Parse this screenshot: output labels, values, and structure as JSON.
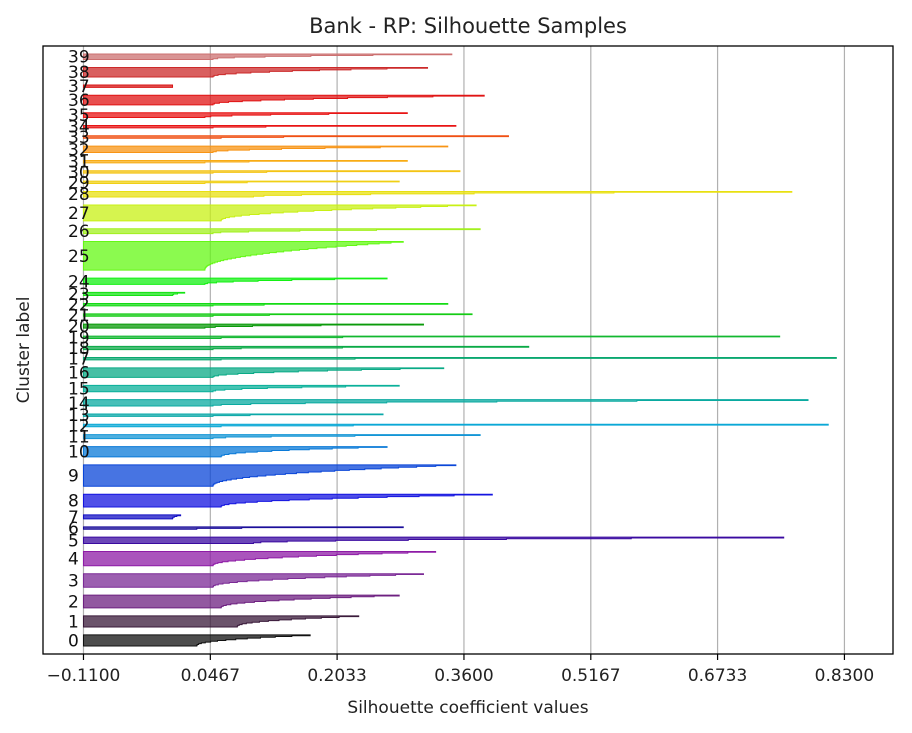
{
  "chart_data": {
    "type": "silhouette",
    "title": "Bank - RP: Silhouette Samples",
    "xlabel": "Silhouette coefficient values",
    "ylabel": "Cluster label",
    "xlim": [
      -0.16,
      0.89
    ],
    "x_ticks": [
      -0.11,
      0.0467,
      0.2033,
      0.36,
      0.5167,
      0.6733,
      0.83
    ],
    "x_tick_labels": [
      "−0.1100",
      "0.0467",
      "0.2033",
      "0.3600",
      "0.5167",
      "0.6733",
      "0.8300"
    ],
    "grid": "vertical",
    "colormap": "nipy_spectral",
    "clusters": [
      {
        "label": "0",
        "size": 14,
        "max": 0.17,
        "tail": 0.03,
        "color": "#111111"
      },
      {
        "label": "1",
        "size": 14,
        "max": 0.23,
        "tail": 0.08,
        "color": "#3a1a3a"
      },
      {
        "label": "2",
        "size": 16,
        "max": 0.28,
        "tail": 0.06,
        "color": "#6e2080"
      },
      {
        "label": "3",
        "size": 17,
        "max": 0.31,
        "tail": 0.05,
        "color": "#7b2a96"
      },
      {
        "label": "4",
        "size": 18,
        "max": 0.325,
        "tail": 0.05,
        "color": "#8e1ba6"
      },
      {
        "label": "5",
        "size": 8,
        "max": 0.755,
        "tail": 0.1,
        "color": "#3a0aa0"
      },
      {
        "label": "6",
        "size": 3,
        "max": 0.285,
        "tail": 0.03,
        "color": "#1a0d9a"
      },
      {
        "label": "7",
        "size": 5,
        "max": 0.01,
        "tail": 0.0,
        "color": "#1410c4"
      },
      {
        "label": "8",
        "size": 16,
        "max": 0.395,
        "tail": 0.06,
        "color": "#1414e0"
      },
      {
        "label": "9",
        "size": 27,
        "max": 0.35,
        "tail": 0.05,
        "color": "#0a46d8"
      },
      {
        "label": "10",
        "size": 13,
        "max": 0.265,
        "tail": 0.06,
        "color": "#0a7ad8"
      },
      {
        "label": "11",
        "size": 5,
        "max": 0.38,
        "tail": 0.05,
        "color": "#1496d6"
      },
      {
        "label": "12",
        "size": 3,
        "max": 0.81,
        "tail": 0.06,
        "color": "#0aa8d6"
      },
      {
        "label": "13",
        "size": 3,
        "max": 0.26,
        "tail": 0.05,
        "color": "#0aa8a8"
      },
      {
        "label": "14",
        "size": 8,
        "max": 0.785,
        "tail": 0.05,
        "color": "#0aaaa0"
      },
      {
        "label": "15",
        "size": 8,
        "max": 0.28,
        "tail": 0.05,
        "color": "#0ab09a"
      },
      {
        "label": "16",
        "size": 12,
        "max": 0.335,
        "tail": 0.05,
        "color": "#0aaa86"
      },
      {
        "label": "17",
        "size": 3,
        "max": 0.82,
        "tail": 0.06,
        "color": "#0aa870"
      },
      {
        "label": "18",
        "size": 4,
        "max": 0.44,
        "tail": 0.05,
        "color": "#0aaa46"
      },
      {
        "label": "19",
        "size": 3,
        "max": 0.75,
        "tail": 0.06,
        "color": "#12b830"
      },
      {
        "label": "20",
        "size": 5,
        "max": 0.31,
        "tail": 0.04,
        "color": "#0a9a0a"
      },
      {
        "label": "21",
        "size": 3,
        "max": 0.37,
        "tail": 0.05,
        "color": "#14cc14"
      },
      {
        "label": "22",
        "size": 3,
        "max": 0.34,
        "tail": 0.05,
        "color": "#14dc14"
      },
      {
        "label": "23",
        "size": 4,
        "max": 0.015,
        "tail": 0.0,
        "color": "#14e414"
      },
      {
        "label": "24",
        "size": 8,
        "max": 0.265,
        "tail": 0.04,
        "color": "#14f014"
      },
      {
        "label": "25",
        "size": 36,
        "max": 0.285,
        "tail": 0.04,
        "color": "#64f814"
      },
      {
        "label": "26",
        "size": 6,
        "max": 0.38,
        "tail": 0.05,
        "color": "#a2f01e"
      },
      {
        "label": "27",
        "size": 20,
        "max": 0.375,
        "tail": 0.06,
        "color": "#c8f014"
      },
      {
        "label": "28",
        "size": 7,
        "max": 0.765,
        "tail": 0.1,
        "color": "#e8e010"
      },
      {
        "label": "29",
        "size": 3,
        "max": 0.28,
        "tail": 0.04,
        "color": "#f0d014"
      },
      {
        "label": "30",
        "size": 3,
        "max": 0.355,
        "tail": 0.05,
        "color": "#f4c414"
      },
      {
        "label": "31",
        "size": 3,
        "max": 0.29,
        "tail": 0.04,
        "color": "#f8ac14"
      },
      {
        "label": "32",
        "size": 8,
        "max": 0.34,
        "tail": 0.05,
        "color": "#f89414"
      },
      {
        "label": "33",
        "size": 3,
        "max": 0.415,
        "tail": 0.06,
        "color": "#f05014"
      },
      {
        "label": "34",
        "size": 3,
        "max": 0.35,
        "tail": 0.05,
        "color": "#e81414"
      },
      {
        "label": "35",
        "size": 6,
        "max": 0.29,
        "tail": 0.04,
        "color": "#e81414"
      },
      {
        "label": "36",
        "size": 12,
        "max": 0.385,
        "tail": 0.05,
        "color": "#e01414"
      },
      {
        "label": "37",
        "size": 3,
        "max": 0.0,
        "tail": 0.0,
        "color": "#d81414"
      },
      {
        "label": "38",
        "size": 12,
        "max": 0.315,
        "tail": 0.05,
        "color": "#cc2a2a"
      },
      {
        "label": "39",
        "size": 7,
        "max": 0.345,
        "tail": 0.05,
        "color": "#cc7070"
      }
    ]
  }
}
